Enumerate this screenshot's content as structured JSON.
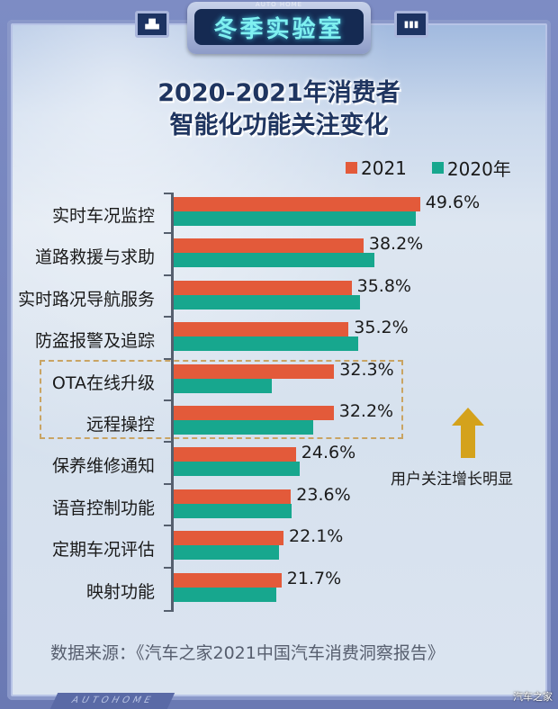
{
  "header": {
    "badge_title": "冬季实验室",
    "badge_subtitle": "AUTO HOME",
    "left_icon": "equalizer-icon",
    "right_icon": "signal-bars-icon"
  },
  "title_line1": "2020-2021年消费者",
  "title_line2": "智能化功能关注变化",
  "legend": [
    {
      "label": "2021",
      "color": "#e35a3a"
    },
    {
      "label": "2020年",
      "color": "#17a78e"
    }
  ],
  "rows": [
    {
      "label": "实时车况监控",
      "v2021": 49.6,
      "v2020": 48.7,
      "text": "49.6%"
    },
    {
      "label": "道路救援与求助",
      "v2021": 38.2,
      "v2020": 40.4,
      "text": "38.2%"
    },
    {
      "label": "实时路况导航服务",
      "v2021": 35.8,
      "v2020": 37.5,
      "text": "35.8%"
    },
    {
      "label": "防盗报警及追踪",
      "v2021": 35.2,
      "v2020": 37.1,
      "text": "35.2%"
    },
    {
      "label": "OTA在线升级",
      "v2021": 32.3,
      "v2020": 19.7,
      "text": "32.3%"
    },
    {
      "label": "远程操控",
      "v2021": 32.2,
      "v2020": 28.1,
      "text": "32.2%"
    },
    {
      "label": "保养维修通知",
      "v2021": 24.6,
      "v2020": 25.4,
      "text": "24.6%"
    },
    {
      "label": "语音控制功能",
      "v2021": 23.6,
      "v2020": 23.7,
      "text": "23.6%"
    },
    {
      "label": "定期车况评估",
      "v2021": 22.1,
      "v2020": 21.2,
      "text": "22.1%"
    },
    {
      "label": "映射功能",
      "v2021": 21.7,
      "v2020": 20.7,
      "text": "21.7%"
    }
  ],
  "annotation": {
    "text": "用户关注增长明显",
    "arrow_color": "#d4a21c",
    "box_color": "#c9a463"
  },
  "source": "数据来源：《汽车之家2021中国汽车消费洞察报告》",
  "footer_brand": "AUTOHOME",
  "watermark": "汽车之家",
  "chart_data": {
    "type": "bar",
    "orientation": "horizontal",
    "title": "2020-2021年消费者智能化功能关注变化",
    "categories": [
      "实时车况监控",
      "道路救援与求助",
      "实时路况导航服务",
      "防盗报警及追踪",
      "OTA在线升级",
      "远程操控",
      "保养维修通知",
      "语音控制功能",
      "定期车况评估",
      "映射功能"
    ],
    "series": [
      {
        "name": "2021",
        "color": "#e35a3a",
        "values": [
          49.6,
          38.2,
          35.8,
          35.2,
          32.3,
          32.2,
          24.6,
          23.6,
          22.1,
          21.7
        ]
      },
      {
        "name": "2020年",
        "color": "#17a78e",
        "values": [
          48.7,
          40.4,
          37.5,
          37.1,
          19.7,
          28.1,
          25.4,
          23.7,
          21.2,
          20.7
        ]
      }
    ],
    "data_labels": [
      "49.6%",
      "38.2%",
      "35.8%",
      "35.2%",
      "32.3%",
      "32.2%",
      "24.6%",
      "23.6%",
      "22.1%",
      "21.7%"
    ],
    "xlabel": "",
    "ylabel": "",
    "xlim": [
      0,
      55
    ],
    "grid": false,
    "legend_position": "top-right",
    "annotations": [
      {
        "text": "用户关注增长明显",
        "target": [
          "OTA在线升级",
          "远程操控"
        ],
        "style": "dashed-box + up-arrow"
      }
    ],
    "source": "数据来源：《汽车之家2021中国汽车消费洞察报告》"
  }
}
